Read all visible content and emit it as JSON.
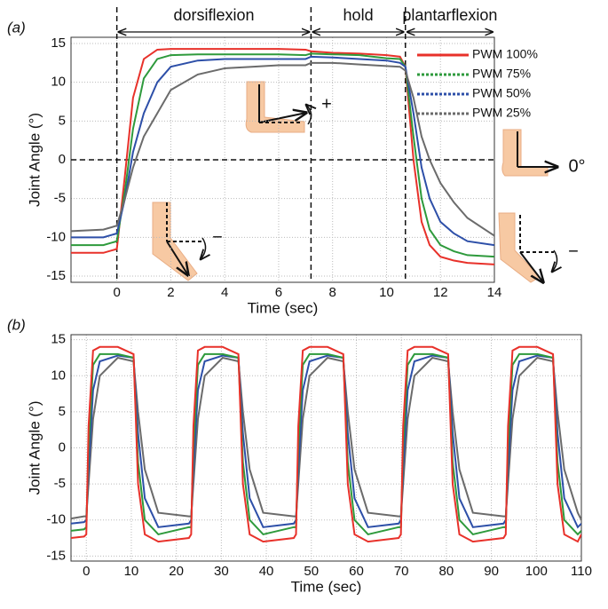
{
  "chart_data": [
    {
      "type": "line",
      "panel_label": "(a)",
      "xlabel": "Time (sec)",
      "ylabel": "Joint Angle (°)",
      "xlim": [
        -1.7,
        14
      ],
      "ylim": [
        -15.8,
        15.8
      ],
      "xticks": [
        0,
        2,
        4,
        6,
        8,
        10,
        12,
        14
      ],
      "yticks": [
        -15,
        -10,
        -5,
        0,
        5,
        10,
        15
      ],
      "grid": true,
      "legend": "upper right",
      "vlines": [
        0,
        7.2,
        10.7
      ],
      "hlines": [
        0
      ],
      "phases": [
        "dorsiflexion",
        "hold",
        "plantarflexion"
      ],
      "annotations": [
        "+",
        "−",
        "0°",
        "−"
      ],
      "x": [
        -1.7,
        -0.5,
        0,
        0.3,
        0.6,
        1,
        1.5,
        2,
        3,
        4,
        5,
        6,
        7,
        7.2,
        8,
        9,
        10,
        10.5,
        10.7,
        11,
        11.3,
        11.6,
        12,
        12.5,
        13,
        14
      ],
      "series": [
        {
          "name": "PWM 100%",
          "color": "#e8312a",
          "values": [
            -12,
            -12,
            -11.5,
            -2,
            8,
            13,
            14.2,
            14.3,
            14.3,
            14.3,
            14.3,
            14.3,
            14.2,
            14,
            13.8,
            13.7,
            13.5,
            13.3,
            12,
            0,
            -8,
            -11,
            -12.5,
            -13,
            -13.3,
            -13.5
          ]
        },
        {
          "name": "PWM 75%",
          "color": "#2e9a3c",
          "values": [
            -11,
            -11,
            -10.5,
            -4,
            4,
            10.5,
            13,
            13.5,
            13.6,
            13.6,
            13.6,
            13.6,
            13.5,
            13.7,
            13.6,
            13.5,
            13.1,
            13,
            12,
            3,
            -5,
            -9,
            -11,
            -11.8,
            -12.3,
            -12.5
          ]
        },
        {
          "name": "PWM 50%",
          "color": "#2d4fa8",
          "values": [
            -10,
            -10,
            -9.5,
            -5,
            1,
            6,
            10,
            12,
            12.8,
            13,
            13,
            13,
            13,
            13.3,
            13.2,
            13,
            12.8,
            12.5,
            12,
            6,
            -1,
            -5,
            -8,
            -9.5,
            -10.5,
            -11
          ]
        },
        {
          "name": "PWM 25%",
          "color": "#6b6b6b",
          "values": [
            -9.2,
            -9,
            -8.5,
            -5,
            -1,
            3,
            6,
            9,
            11,
            11.8,
            12,
            12.2,
            12.2,
            12.5,
            12.5,
            12.3,
            12.1,
            12,
            11.5,
            8,
            3,
            0,
            -3,
            -5.5,
            -7.5,
            -9.8
          ]
        }
      ]
    },
    {
      "type": "line",
      "panel_label": "(b)",
      "xlabel": "Time (sec)",
      "ylabel": "Joint Angle (°)",
      "xlim": [
        -3.4,
        110
      ],
      "ylim": [
        -15.7,
        15.7
      ],
      "xticks": [
        0,
        10,
        20,
        30,
        40,
        50,
        60,
        70,
        80,
        90,
        100,
        110
      ],
      "yticks": [
        -15,
        -10,
        -5,
        0,
        5,
        10,
        15
      ],
      "grid": true,
      "x": [
        -3.4,
        -0.5,
        0,
        0.5,
        1.5,
        3,
        7,
        10.5,
        11.5,
        13,
        16,
        22.8,
        23.3,
        23.8,
        24.8,
        26.3,
        30.3,
        33.8,
        34.8,
        36.3,
        39.3,
        46.1,
        46.6,
        47.1,
        48.1,
        49.6,
        53.6,
        57.1,
        58.1,
        59.6,
        62.6,
        69.4,
        69.9,
        70.4,
        71.4,
        72.9,
        76.9,
        80.4,
        81.4,
        82.9,
        85.9,
        92.7,
        93.2,
        93.7,
        94.7,
        96.2,
        100.2,
        103.7,
        104.7,
        106.2,
        109.2,
        110
      ],
      "series": [
        {
          "color": "#6b6b6b",
          "values": [
            -9.8,
            -9.5,
            -9.5,
            -5,
            4,
            10,
            12.5,
            12,
            5,
            -3,
            -9,
            -9.5,
            -9.5,
            -5,
            4,
            10,
            12.5,
            12,
            5,
            -3,
            -9,
            -9.5,
            -9.5,
            -5,
            4,
            10,
            12.5,
            12,
            5,
            -3,
            -9,
            -9.5,
            -9.5,
            -5,
            4,
            10,
            12.5,
            12,
            5,
            -3,
            -9,
            -9.5,
            -9.5,
            -5,
            4,
            10,
            12.5,
            12,
            5,
            -3,
            -9,
            -10
          ]
        },
        {
          "color": "#2d4fa8",
          "values": [
            -10.5,
            -10.3,
            -10,
            -3,
            8,
            12,
            12.8,
            12.5,
            2,
            -7,
            -11,
            -10.5,
            -10,
            -3,
            8,
            12,
            12.8,
            12.5,
            2,
            -7,
            -11,
            -10.5,
            -10,
            -3,
            8,
            12,
            12.8,
            12.5,
            2,
            -7,
            -11,
            -10.5,
            -10,
            -3,
            8,
            12,
            12.8,
            12.5,
            2,
            -7,
            -11,
            -10.5,
            -10,
            -3,
            8,
            12,
            12.8,
            12.5,
            2,
            -7,
            -11,
            -10.5
          ]
        },
        {
          "color": "#2e9a3c",
          "values": [
            -11.5,
            -11.3,
            -11,
            0,
            11.5,
            13,
            13,
            12.5,
            -2,
            -10,
            -12,
            -11,
            -11,
            0,
            11.5,
            13,
            13,
            12.5,
            -2,
            -10,
            -12,
            -11,
            -11,
            0,
            11.5,
            13,
            13,
            12.5,
            -2,
            -10,
            -12,
            -11,
            -11,
            0,
            11.5,
            13,
            13,
            12.5,
            -2,
            -10,
            -12,
            -11,
            -11,
            0,
            11.5,
            13,
            13,
            12.5,
            -2,
            -10,
            -12,
            -11.5
          ]
        },
        {
          "color": "#e8312a",
          "values": [
            -12.5,
            -12.3,
            -12,
            3,
            13.5,
            14,
            14,
            13,
            -5,
            -12,
            -13,
            -12.5,
            -12,
            3,
            13.5,
            14,
            14,
            13,
            -5,
            -12,
            -13,
            -12.5,
            -12,
            3,
            13.5,
            14,
            14,
            13,
            -5,
            -12,
            -13,
            -12.5,
            -12,
            3,
            13.5,
            14,
            14,
            13,
            -5,
            -12,
            -13,
            -12.5,
            -12,
            3,
            13.5,
            14,
            14,
            13,
            -5,
            -12,
            -13,
            -12
          ]
        }
      ]
    }
  ]
}
